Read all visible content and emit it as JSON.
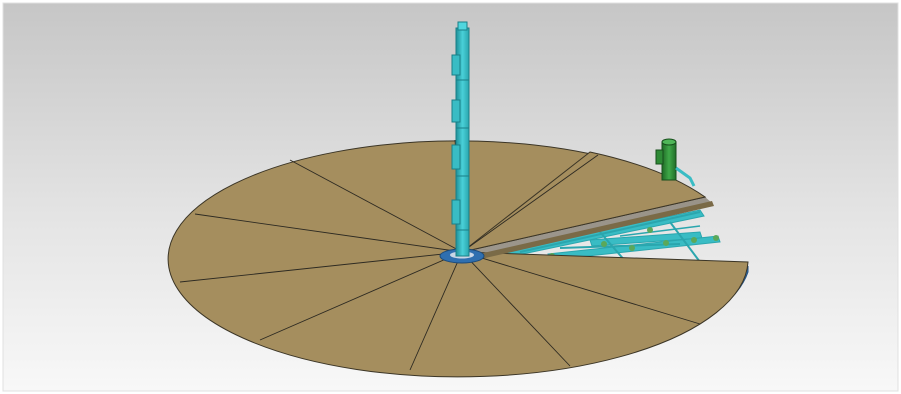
{
  "scene": {
    "background_top": "#c8c8c8",
    "background_bottom": "#f7f7f7",
    "deck_color": "#a58e5e",
    "deck_edge_color": "#2f6fb0",
    "mast_color": "#39bcc4",
    "frame_color": "#39bcc4",
    "motor_color": "#2e8a36",
    "panel_count": 12
  }
}
